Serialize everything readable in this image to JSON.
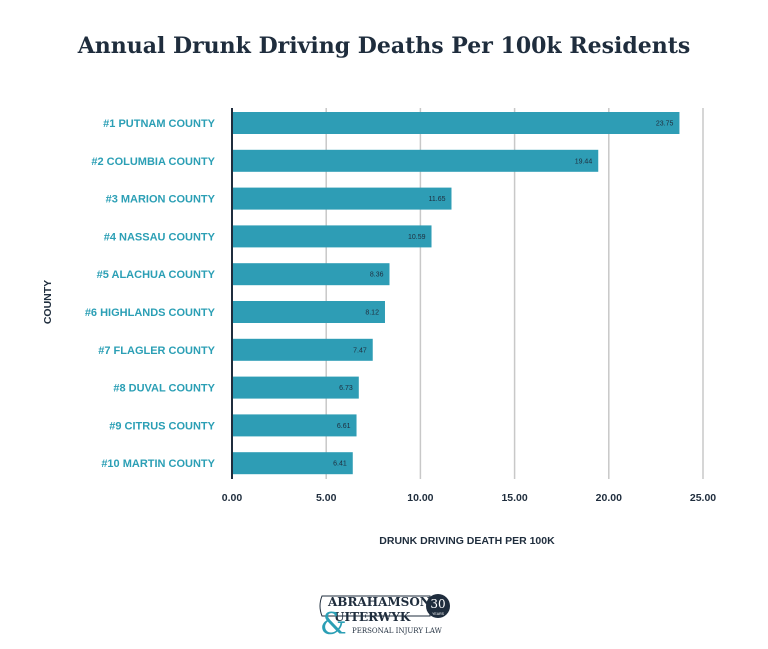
{
  "chart_data": {
    "type": "bar",
    "orientation": "horizontal",
    "title": "Annual Drunk Driving Deaths Per 100k Residents",
    "xlabel": "DRUNK DRIVING DEATH PER 100K",
    "ylabel": "COUNTY",
    "categories": [
      "#1 PUTNAM COUNTY",
      "#2 COLUMBIA COUNTY",
      "#3 MARION COUNTY",
      "#4 NASSAU COUNTY",
      "#5 ALACHUA COUNTY",
      "#6 HIGHLANDS COUNTY",
      "#7 FLAGLER COUNTY",
      "#8 DUVAL COUNTY",
      "#9 CITRUS COUNTY",
      "#10 MARTIN COUNTY"
    ],
    "values": [
      23.75,
      19.44,
      11.65,
      10.59,
      8.36,
      8.12,
      7.47,
      6.73,
      6.61,
      6.41
    ],
    "data_labels": [
      "23.75",
      "19.44",
      "11.65",
      "10.59",
      "8.36",
      "8.12",
      "7.47",
      "6.73",
      "6.61",
      "6.41"
    ],
    "xlim": [
      0,
      25
    ],
    "xticks": [
      "0.00",
      "5.00",
      "10.00",
      "15.00",
      "20.00",
      "25.00"
    ],
    "grid": "vertical",
    "bar_color": "#2e9db5",
    "label_color": "#2b9fb5"
  },
  "logo": {
    "line1": "ABRAHAMSON",
    "line2": "UITERWYK",
    "line3": "PERSONAL INJURY LAW",
    "badge": "30",
    "badge_sub": "YEARS"
  }
}
